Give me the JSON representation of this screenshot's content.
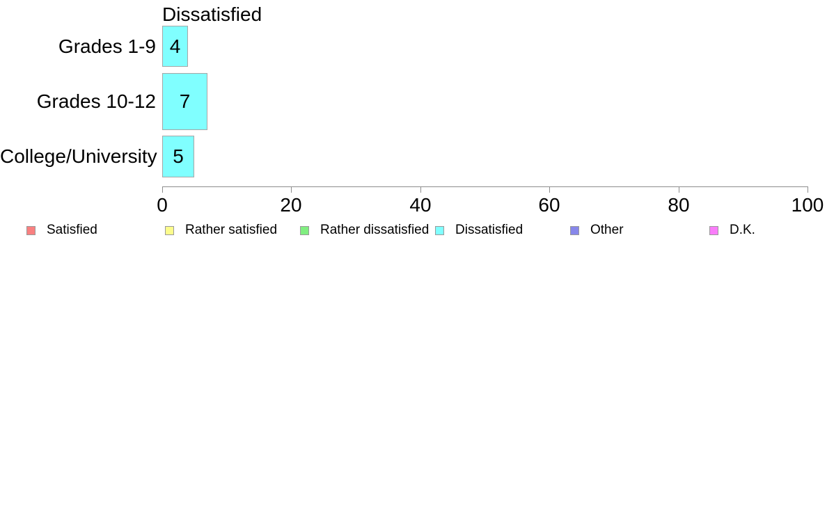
{
  "chart_data": {
    "type": "bar",
    "orientation": "horizontal",
    "title": "Dissatisfied",
    "categories": [
      "Grades 1-9",
      "Grades 10-12",
      "College/University"
    ],
    "values": [
      4,
      7,
      5
    ],
    "xlabel": "",
    "ylabel": "",
    "xlim": [
      0,
      100
    ],
    "x_ticks": [
      "0",
      "20",
      "40",
      "60",
      "80",
      "100"
    ],
    "grid": false,
    "legend_position": "bottom",
    "bar_color": "#80ffff",
    "bar_border_color": "#a6a6a6",
    "axis_color": "#8c8c8c",
    "text_color": "#000000",
    "background_color": "#ffffff",
    "legend": [
      {
        "label": "Satisfied",
        "color": "#f98080"
      },
      {
        "label": "Rather satisfied",
        "color": "#fcfc8c"
      },
      {
        "label": "Rather dissatisfied",
        "color": "#80ee80"
      },
      {
        "label": "Dissatisfied",
        "color": "#80ffff"
      },
      {
        "label": "Other",
        "color": "#8787ea"
      },
      {
        "label": "D.K.",
        "color": "#f97df9"
      }
    ]
  }
}
